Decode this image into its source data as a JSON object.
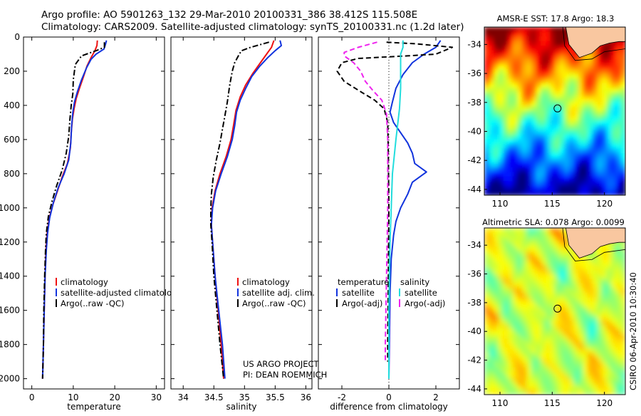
{
  "title": {
    "line1": "Argo profile: AO 5901263_132 29-Mar-2010 20100331_386 38.412S 115.508E",
    "line2": "Climatology: CARS2009. Satellite-adjusted climatology: synTS_20100331.nc (1.2d later)"
  },
  "credit": {
    "line1": "US ARGO PROJECT",
    "line2": "PI: DEAN ROEMMICH"
  },
  "timestamp": "CSIRO 06-Apr-2010 10:30:40",
  "colors": {
    "climatology": "#ee1111",
    "satellite": "#1133dd",
    "argo": "#000000",
    "satellite_salinity": "#22dddd",
    "argo_salinity_adj": "#ee22ee",
    "land": "#f9c7a0"
  },
  "chart_data": [
    {
      "id": "temperature",
      "type": "line",
      "xlabel": "temperature",
      "xlim": [
        -2,
        32
      ],
      "xticks": [
        0,
        10,
        20,
        30
      ],
      "ylim": [
        0,
        2060
      ],
      "yticks": [
        0,
        200,
        400,
        600,
        800,
        1000,
        1200,
        1400,
        1600,
        1800,
        2000
      ],
      "y_reversed": true,
      "legend": {
        "position": "lower-right",
        "entries": [
          "climatology",
          "satellite-adjusted climatology",
          "Argo(..raw -QC)"
        ]
      },
      "series": [
        {
          "name": "climatology",
          "color": "#ee1111",
          "dash": "solid",
          "points": [
            [
              15.8,
              20
            ],
            [
              15.7,
              50
            ],
            [
              15.2,
              80
            ],
            [
              14.3,
              120
            ],
            [
              13.3,
              170
            ],
            [
              12.5,
              230
            ],
            [
              11.5,
              300
            ],
            [
              10.7,
              360
            ],
            [
              10.2,
              420
            ],
            [
              9.8,
              480
            ],
            [
              9.5,
              560
            ],
            [
              9.3,
              650
            ],
            [
              8.6,
              740
            ],
            [
              7.3,
              820
            ],
            [
              6.2,
              900
            ],
            [
              5.1,
              980
            ],
            [
              4.2,
              1060
            ],
            [
              3.7,
              1150
            ],
            [
              3.4,
              1250
            ],
            [
              3.2,
              1400
            ],
            [
              3.0,
              1600
            ],
            [
              2.8,
              1800
            ],
            [
              2.6,
              2000
            ]
          ]
        },
        {
          "name": "satellite-adjusted climatology",
          "color": "#1133dd",
          "dash": "solid",
          "points": [
            [
              18.0,
              20
            ],
            [
              17.8,
              40
            ],
            [
              17.4,
              70
            ],
            [
              15.5,
              100
            ],
            [
              14.3,
              130
            ],
            [
              13.2,
              180
            ],
            [
              12.0,
              250
            ],
            [
              11.0,
              320
            ],
            [
              10.3,
              380
            ],
            [
              9.9,
              440
            ],
            [
              9.6,
              520
            ],
            [
              9.4,
              620
            ],
            [
              8.9,
              720
            ],
            [
              7.8,
              800
            ],
            [
              6.4,
              880
            ],
            [
              5.2,
              970
            ],
            [
              4.3,
              1060
            ],
            [
              3.8,
              1150
            ],
            [
              3.5,
              1250
            ],
            [
              3.2,
              1400
            ],
            [
              3.0,
              1600
            ],
            [
              2.8,
              1800
            ],
            [
              2.6,
              2000
            ]
          ]
        },
        {
          "name": "Argo(..raw -QC)",
          "color": "#000000",
          "dash": "dashdot",
          "points": [
            [
              17.5,
              30
            ],
            [
              17.5,
              60
            ],
            [
              15.5,
              80
            ],
            [
              12.0,
              110
            ],
            [
              10.5,
              160
            ],
            [
              10.0,
              250
            ],
            [
              9.9,
              330
            ],
            [
              9.5,
              400
            ],
            [
              9.2,
              480
            ],
            [
              8.9,
              580
            ],
            [
              8.3,
              680
            ],
            [
              7.3,
              780
            ],
            [
              6.0,
              870
            ],
            [
              4.9,
              960
            ],
            [
              4.0,
              1050
            ],
            [
              3.5,
              1150
            ],
            [
              3.3,
              1250
            ],
            [
              3.1,
              1400
            ],
            [
              2.9,
              1600
            ],
            [
              2.8,
              1800
            ],
            [
              2.6,
              2000
            ]
          ]
        }
      ]
    },
    {
      "id": "salinity",
      "type": "line",
      "xlabel": "salinity",
      "xlim": [
        33.8,
        36.1
      ],
      "xticks": [
        34,
        34.5,
        35,
        35.5,
        36
      ],
      "ylim": [
        0,
        2060
      ],
      "y_reversed": true,
      "legend": {
        "position": "lower-right",
        "entries": [
          "climatology",
          "satellite adj. clim.",
          "Argo(..raw -QC)"
        ]
      },
      "series": [
        {
          "name": "climatology",
          "color": "#ee1111",
          "dash": "solid",
          "points": [
            [
              35.48,
              20
            ],
            [
              35.44,
              60
            ],
            [
              35.36,
              100
            ],
            [
              35.26,
              150
            ],
            [
              35.14,
              210
            ],
            [
              35.02,
              280
            ],
            [
              34.93,
              350
            ],
            [
              34.86,
              430
            ],
            [
              34.82,
              520
            ],
            [
              34.78,
              600
            ],
            [
              34.7,
              700
            ],
            [
              34.6,
              800
            ],
            [
              34.52,
              900
            ],
            [
              34.47,
              1000
            ],
            [
              34.46,
              1100
            ],
            [
              34.48,
              1200
            ],
            [
              34.52,
              1400
            ],
            [
              34.57,
              1600
            ],
            [
              34.62,
              1800
            ],
            [
              34.66,
              2000
            ]
          ]
        },
        {
          "name": "satellite adj. clim.",
          "color": "#1133dd",
          "dash": "solid",
          "points": [
            [
              35.58,
              20
            ],
            [
              35.6,
              50
            ],
            [
              35.5,
              80
            ],
            [
              35.38,
              120
            ],
            [
              35.25,
              170
            ],
            [
              35.12,
              230
            ],
            [
              35.02,
              300
            ],
            [
              34.93,
              370
            ],
            [
              34.87,
              440
            ],
            [
              34.84,
              520
            ],
            [
              34.8,
              600
            ],
            [
              34.72,
              700
            ],
            [
              34.62,
              800
            ],
            [
              34.53,
              900
            ],
            [
              34.48,
              1000
            ],
            [
              34.46,
              1100
            ],
            [
              34.48,
              1200
            ],
            [
              34.52,
              1400
            ],
            [
              34.58,
              1600
            ],
            [
              34.64,
              1800
            ],
            [
              34.68,
              2000
            ]
          ]
        },
        {
          "name": "Argo(..raw -QC)",
          "color": "#000000",
          "dash": "dashdot",
          "points": [
            [
              35.4,
              30
            ],
            [
              35.1,
              60
            ],
            [
              34.95,
              80
            ],
            [
              34.9,
              110
            ],
            [
              34.84,
              150
            ],
            [
              34.8,
              200
            ],
            [
              34.76,
              280
            ],
            [
              34.72,
              380
            ],
            [
              34.68,
              460
            ],
            [
              34.64,
              540
            ],
            [
              34.6,
              620
            ],
            [
              34.54,
              720
            ],
            [
              34.49,
              820
            ],
            [
              34.46,
              920
            ],
            [
              34.45,
              1000
            ],
            [
              34.45,
              1100
            ],
            [
              34.47,
              1200
            ],
            [
              34.5,
              1400
            ],
            [
              34.55,
              1600
            ],
            [
              34.6,
              1800
            ],
            [
              34.66,
              2000
            ]
          ]
        }
      ]
    },
    {
      "id": "difference",
      "type": "line",
      "xlabel": "difference from climatology",
      "xlim": [
        -3,
        3
      ],
      "xticks": [
        -2,
        0,
        2
      ],
      "ylim": [
        0,
        2060
      ],
      "y_reversed": true,
      "zero_line": true,
      "legend": {
        "position": "lower-center",
        "groups": [
          {
            "header": "temperature",
            "entries": [
              "satellite",
              "Argo(-adj)"
            ]
          },
          {
            "header": "salinity",
            "entries": [
              "satellite",
              "Argo(-adj)"
            ]
          }
        ]
      },
      "series": [
        {
          "name": "temperature satellite",
          "color": "#1133dd",
          "dash": "solid",
          "points": [
            [
              2.2,
              20
            ],
            [
              2.1,
              40
            ],
            [
              2.0,
              60
            ],
            [
              1.5,
              100
            ],
            [
              1.0,
              150
            ],
            [
              0.6,
              220
            ],
            [
              0.3,
              300
            ],
            [
              0.15,
              380
            ],
            [
              0.05,
              440
            ],
            [
              0.2,
              500
            ],
            [
              0.5,
              560
            ],
            [
              0.8,
              620
            ],
            [
              1.0,
              680
            ],
            [
              1.1,
              740
            ],
            [
              1.6,
              790
            ],
            [
              1.0,
              850
            ],
            [
              0.8,
              920
            ],
            [
              0.5,
              1000
            ],
            [
              0.3,
              1080
            ],
            [
              0.2,
              1160
            ],
            [
              0.1,
              1300
            ],
            [
              0.05,
              1500
            ],
            [
              0.02,
              1800
            ],
            [
              0.0,
              2000
            ]
          ]
        },
        {
          "name": "temperature Argo(-adj)",
          "color": "#000000",
          "dash": "dash",
          "points": [
            [
              -0.1,
              30
            ],
            [
              1.2,
              40
            ],
            [
              2.7,
              60
            ],
            [
              2.0,
              100
            ],
            [
              0.8,
              110
            ],
            [
              -1.3,
              125
            ],
            [
              -2.0,
              150
            ],
            [
              -2.2,
              200
            ],
            [
              -1.9,
              260
            ],
            [
              -1.2,
              320
            ],
            [
              -0.6,
              370
            ],
            [
              -0.2,
              420
            ],
            [
              -0.05,
              500
            ],
            [
              -0.02,
              700
            ],
            [
              0.0,
              1000
            ],
            [
              -0.02,
              1400
            ],
            [
              -0.05,
              1800
            ],
            [
              -0.05,
              1900
            ]
          ]
        },
        {
          "name": "salinity satellite",
          "color": "#22dddd",
          "dash": "solid",
          "points": [
            [
              0.6,
              20
            ],
            [
              0.6,
              60
            ],
            [
              0.5,
              100
            ],
            [
              0.5,
              180
            ],
            [
              0.5,
              300
            ],
            [
              0.45,
              420
            ],
            [
              0.3,
              600
            ],
            [
              0.15,
              800
            ],
            [
              0.1,
              1000
            ],
            [
              0.05,
              1200
            ],
            [
              0.0,
              1600
            ],
            [
              0.0,
              2000
            ]
          ]
        },
        {
          "name": "salinity Argo(-adj)",
          "color": "#ee22ee",
          "dash": "dash",
          "points": [
            [
              -0.5,
              30
            ],
            [
              -1.3,
              60
            ],
            [
              -1.9,
              90
            ],
            [
              -1.9,
              110
            ],
            [
              -1.5,
              150
            ],
            [
              -1.2,
              200
            ],
            [
              -1.0,
              260
            ],
            [
              -0.7,
              310
            ],
            [
              -0.3,
              370
            ],
            [
              -0.1,
              450
            ],
            [
              -0.05,
              600
            ],
            [
              -0.05,
              1000
            ],
            [
              -0.1,
              1400
            ],
            [
              -0.15,
              1800
            ],
            [
              -0.15,
              1900
            ]
          ]
        }
      ]
    },
    {
      "id": "sst-map",
      "type": "heatmap",
      "title": "AMSR-E SST: 17.8  Argo: 18.3",
      "xlim": [
        108.5,
        122
      ],
      "ylim": [
        -44.4,
        -32.8
      ],
      "xticks": [
        110,
        115,
        120
      ],
      "yticks": [
        -34,
        -36,
        -38,
        -40,
        -42,
        -44
      ],
      "colormap": "jet",
      "marker": {
        "lon": 115.508,
        "lat": -38.412
      }
    },
    {
      "id": "sla-map",
      "type": "heatmap",
      "title": "Altimetric SLA: 0.078  Argo: 0.0099",
      "xlim": [
        108.5,
        122
      ],
      "ylim": [
        -44.4,
        -32.8
      ],
      "xticks": [
        110,
        115,
        120
      ],
      "yticks": [
        -34,
        -36,
        -38,
        -40,
        -42,
        -44
      ],
      "colormap": "jet",
      "marker": {
        "lon": 115.508,
        "lat": -38.412
      }
    }
  ]
}
